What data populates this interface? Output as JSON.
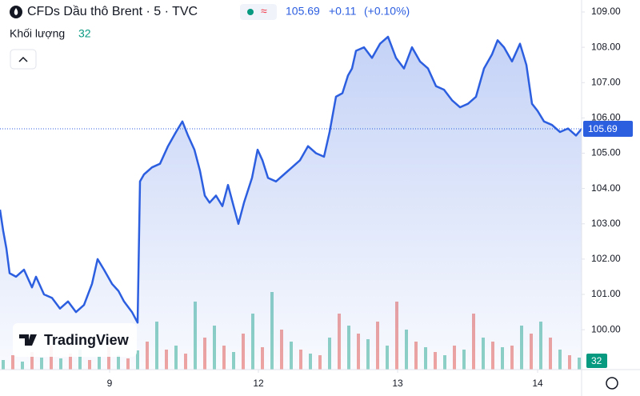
{
  "header": {
    "symbol": "CFDs Dầu thô Brent · 5 · TVC",
    "last": 105.69,
    "change": "+0.11",
    "change_pct": "(+0.10%)",
    "volume_value": 32
  },
  "logo": "TradingView",
  "chart_data": {
    "type": "line",
    "xlim": [
      0,
      727
    ],
    "xticks": [
      {
        "value": 137,
        "label": "9"
      },
      {
        "value": 323,
        "label": "12"
      },
      {
        "value": 497,
        "label": "13"
      },
      {
        "value": 672,
        "label": "14"
      }
    ],
    "ylim": [
      98.87,
      109.34
    ],
    "yticks": [
      {
        "value": 100,
        "label": "100.00"
      },
      {
        "value": 101,
        "label": "101.00"
      },
      {
        "value": 102,
        "label": "102.00"
      },
      {
        "value": 103,
        "label": "103.00"
      },
      {
        "value": 104,
        "label": "104.00"
      },
      {
        "value": 105,
        "label": "105.00"
      },
      {
        "value": 106,
        "label": "106.00"
      },
      {
        "value": 107,
        "label": "107.00"
      },
      {
        "value": 108,
        "label": "108.00"
      },
      {
        "value": 109,
        "label": "109.00"
      }
    ],
    "y2lim": [
      0,
      100
    ],
    "series": [
      {
        "color": "#2c5ee0",
        "x": [
          0,
          4,
          8,
          12,
          20,
          30,
          40,
          45,
          55,
          65,
          75,
          85,
          95,
          105,
          115,
          122,
          130,
          140,
          148,
          155,
          165,
          172,
          175,
          180,
          190,
          200,
          210,
          220,
          228,
          235,
          243,
          250,
          256,
          262,
          270,
          278,
          285,
          292,
          298,
          305,
          315,
          322,
          328,
          335,
          345,
          355,
          365,
          375,
          385,
          395,
          405,
          412,
          420,
          428,
          435,
          440,
          445,
          455,
          465,
          475,
          485,
          495,
          505,
          515,
          525,
          535,
          545,
          555,
          565,
          575,
          585,
          595,
          605,
          615,
          622,
          630,
          640,
          650,
          658,
          665,
          672,
          680,
          690,
          700,
          710,
          720,
          727
        ],
        "values": [
          103.4,
          102.8,
          102.3,
          101.6,
          101.5,
          101.7,
          101.2,
          101.5,
          101.0,
          100.9,
          100.6,
          100.8,
          100.5,
          100.7,
          101.3,
          102.0,
          101.7,
          101.3,
          101.1,
          100.8,
          100.5,
          100.2,
          104.2,
          104.4,
          104.6,
          104.7,
          105.2,
          105.6,
          105.9,
          105.5,
          105.1,
          104.5,
          103.8,
          103.6,
          103.8,
          103.5,
          104.1,
          103.5,
          103.0,
          103.6,
          104.3,
          105.1,
          104.8,
          104.3,
          104.2,
          104.4,
          104.6,
          104.8,
          105.2,
          105.0,
          104.9,
          105.6,
          106.6,
          106.7,
          107.2,
          107.4,
          107.9,
          108.0,
          107.7,
          108.1,
          108.3,
          107.7,
          107.4,
          108.0,
          107.6,
          107.4,
          106.9,
          106.8,
          106.5,
          106.3,
          106.4,
          106.6,
          107.4,
          107.8,
          108.2,
          108.0,
          107.6,
          108.1,
          107.5,
          106.4,
          106.2,
          105.9,
          105.8,
          105.6,
          105.7,
          105.5,
          105.69
        ]
      },
      {
        "name": "Khối lượng",
        "axis": "y2",
        "x": [
          4,
          16,
          28,
          40,
          52,
          64,
          76,
          88,
          100,
          112,
          124,
          136,
          148,
          160,
          172,
          184,
          196,
          208,
          220,
          232,
          244,
          256,
          268,
          280,
          292,
          304,
          316,
          328,
          340,
          352,
          364,
          376,
          388,
          400,
          412,
          424,
          436,
          448,
          460,
          472,
          484,
          496,
          508,
          520,
          532,
          544,
          556,
          568,
          580,
          592,
          604,
          616,
          628,
          640,
          652,
          664,
          676,
          688,
          700,
          712,
          724
        ],
        "values": [
          12,
          18,
          10,
          22,
          15,
          30,
          14,
          20,
          25,
          12,
          16,
          28,
          18,
          14,
          24,
          35,
          60,
          25,
          30,
          20,
          85,
          40,
          55,
          30,
          22,
          45,
          70,
          28,
          97,
          50,
          35,
          25,
          20,
          18,
          40,
          70,
          55,
          45,
          38,
          60,
          30,
          85,
          50,
          35,
          28,
          22,
          18,
          30,
          25,
          70,
          40,
          35,
          28,
          30,
          55,
          45,
          60,
          40,
          25,
          18,
          15
        ],
        "colors": [
          "#8fd3c5",
          "#f2a59f",
          "#8fd3c5",
          "#f2a59f",
          "#8fd3c5",
          "#f2a59f",
          "#8fd3c5",
          "#f2a59f",
          "#8fd3c5",
          "#f2a59f",
          "#8fd3c5",
          "#f2a59f",
          "#8fd3c5",
          "#f2a59f",
          "#8fd3c5",
          "#f2a59f",
          "#8fd3c5",
          "#f2a59f",
          "#8fd3c5",
          "#f2a59f",
          "#8fd3c5",
          "#f2a59f",
          "#8fd3c5",
          "#f2a59f",
          "#8fd3c5",
          "#f2a59f",
          "#8fd3c5",
          "#f2a59f",
          "#8fd3c5",
          "#f2a59f",
          "#8fd3c5",
          "#f2a59f",
          "#8fd3c5",
          "#f2a59f",
          "#8fd3c5",
          "#f2a59f",
          "#8fd3c5",
          "#f2a59f",
          "#8fd3c5",
          "#f2a59f",
          "#8fd3c5",
          "#f2a59f",
          "#8fd3c5",
          "#f2a59f",
          "#8fd3c5",
          "#f2a59f",
          "#8fd3c5",
          "#f2a59f",
          "#8fd3c5",
          "#f2a59f",
          "#8fd3c5",
          "#f2a59f",
          "#8fd3c5",
          "#f2a59f",
          "#8fd3c5",
          "#f2a59f",
          "#8fd3c5",
          "#f2a59f",
          "#8fd3c5",
          "#f2a59f",
          "#8fd3c5"
        ]
      }
    ]
  }
}
